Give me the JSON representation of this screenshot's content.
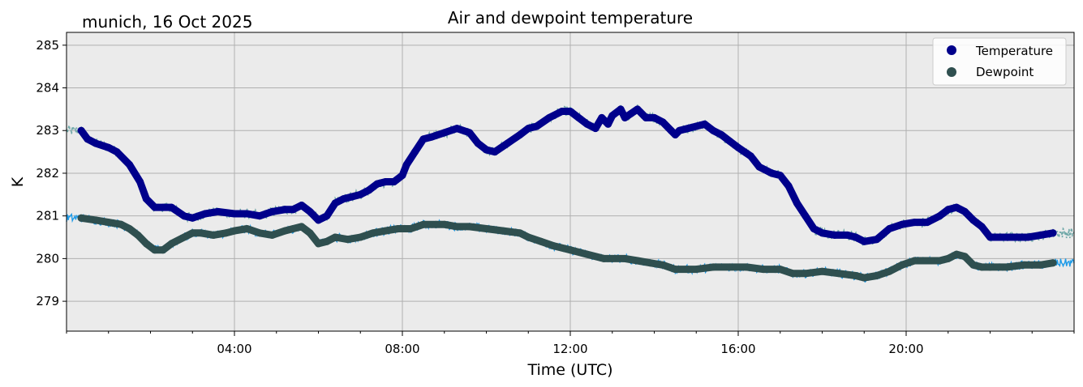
{
  "chart_data": {
    "type": "line",
    "title": "Air and dewpoint temperature",
    "subtitle": "munich, 16 Oct 2025",
    "xlabel": "Time (UTC)",
    "ylabel": "K",
    "xlim_hours": [
      0,
      24
    ],
    "ylim": [
      278.3,
      285.3
    ],
    "xticks": [
      {
        "h": 4,
        "label": "04:00"
      },
      {
        "h": 8,
        "label": "08:00"
      },
      {
        "h": 12,
        "label": "12:00"
      },
      {
        "h": 16,
        "label": "16:00"
      },
      {
        "h": 20,
        "label": "20:00"
      }
    ],
    "yticks": [
      {
        "v": 279,
        "label": "279"
      },
      {
        "v": 280,
        "label": "280"
      },
      {
        "v": 281,
        "label": "281"
      },
      {
        "v": 282,
        "label": "282"
      },
      {
        "v": 283,
        "label": "283"
      },
      {
        "v": 284,
        "label": "284"
      },
      {
        "v": 285,
        "label": "285"
      }
    ],
    "grid": true,
    "legend_position": "top-right",
    "series": [
      {
        "name": "Temperature",
        "color": "#00008b",
        "raw_color": "#6fa8a8",
        "x": [
          0.35,
          0.5,
          0.7,
          1.0,
          1.2,
          1.5,
          1.75,
          1.9,
          2.1,
          2.3,
          2.5,
          2.8,
          3.0,
          3.3,
          3.6,
          4.0,
          4.3,
          4.6,
          4.9,
          5.2,
          5.4,
          5.6,
          5.8,
          6.0,
          6.2,
          6.4,
          6.6,
          6.8,
          7.0,
          7.2,
          7.4,
          7.6,
          7.8,
          8.0,
          8.1,
          8.3,
          8.5,
          8.7,
          9.0,
          9.3,
          9.6,
          9.8,
          10.0,
          10.2,
          10.5,
          10.8,
          11.0,
          11.2,
          11.5,
          11.8,
          12.0,
          12.2,
          12.4,
          12.6,
          12.75,
          12.9,
          13.0,
          13.2,
          13.3,
          13.45,
          13.6,
          13.8,
          14.0,
          14.2,
          14.4,
          14.5,
          14.6,
          14.8,
          15.0,
          15.2,
          15.4,
          15.6,
          15.8,
          16.0,
          16.3,
          16.5,
          16.8,
          17.0,
          17.2,
          17.4,
          17.6,
          17.8,
          18.0,
          18.3,
          18.6,
          18.8,
          19.0,
          19.3,
          19.6,
          19.9,
          20.2,
          20.5,
          20.8,
          21.0,
          21.2,
          21.4,
          21.6,
          21.8,
          22.0,
          22.3,
          22.6,
          22.9,
          23.2,
          23.5
        ],
        "values": [
          283.0,
          282.8,
          282.7,
          282.6,
          282.5,
          282.2,
          281.8,
          281.4,
          281.2,
          281.2,
          281.2,
          281.0,
          280.95,
          281.05,
          281.1,
          281.05,
          281.05,
          281.0,
          281.1,
          281.15,
          281.15,
          281.25,
          281.1,
          280.9,
          281.0,
          281.3,
          281.4,
          281.45,
          281.5,
          281.6,
          281.75,
          281.8,
          281.8,
          281.95,
          282.2,
          282.5,
          282.8,
          282.85,
          282.95,
          283.05,
          282.95,
          282.7,
          282.55,
          282.5,
          282.7,
          282.9,
          283.05,
          283.1,
          283.3,
          283.45,
          283.45,
          283.3,
          283.15,
          283.05,
          283.3,
          283.15,
          283.35,
          283.5,
          283.3,
          283.4,
          283.5,
          283.3,
          283.3,
          283.2,
          283.0,
          282.9,
          283.0,
          283.05,
          283.1,
          283.15,
          283.0,
          282.9,
          282.75,
          282.6,
          282.4,
          282.15,
          282.0,
          281.95,
          281.7,
          281.3,
          281.0,
          280.7,
          280.6,
          280.55,
          280.55,
          280.5,
          280.4,
          280.45,
          280.7,
          280.8,
          280.85,
          280.85,
          281.0,
          281.15,
          281.2,
          281.1,
          280.9,
          280.75,
          280.5,
          280.5,
          280.5,
          280.5,
          280.55,
          280.6
        ]
      },
      {
        "name": "Dewpoint",
        "color": "#2f4f4f",
        "raw_color": "#1e9be8",
        "x": [
          0.35,
          0.7,
          1.0,
          1.3,
          1.5,
          1.7,
          1.9,
          2.1,
          2.3,
          2.5,
          2.8,
          3.0,
          3.2,
          3.5,
          3.8,
          4.0,
          4.3,
          4.6,
          4.9,
          5.2,
          5.4,
          5.6,
          5.8,
          6.0,
          6.2,
          6.4,
          6.7,
          7.0,
          7.3,
          7.6,
          7.9,
          8.2,
          8.5,
          8.8,
          9.0,
          9.3,
          9.6,
          10.0,
          10.4,
          10.8,
          11.0,
          11.3,
          11.6,
          12.0,
          12.4,
          12.8,
          13.0,
          13.3,
          13.6,
          13.9,
          14.2,
          14.5,
          14.8,
          15.0,
          15.4,
          15.8,
          16.2,
          16.6,
          17.0,
          17.3,
          17.6,
          18.0,
          18.4,
          18.8,
          19.0,
          19.3,
          19.6,
          19.9,
          20.2,
          20.6,
          20.8,
          21.0,
          21.2,
          21.4,
          21.6,
          21.8,
          22.0,
          22.4,
          22.8,
          23.2,
          23.5
        ],
        "values": [
          280.95,
          280.9,
          280.85,
          280.8,
          280.7,
          280.55,
          280.35,
          280.2,
          280.2,
          280.35,
          280.5,
          280.6,
          280.6,
          280.55,
          280.6,
          280.65,
          280.7,
          280.6,
          280.55,
          280.65,
          280.7,
          280.75,
          280.6,
          280.35,
          280.4,
          280.5,
          280.45,
          280.5,
          280.6,
          280.65,
          280.7,
          280.7,
          280.8,
          280.8,
          280.8,
          280.75,
          280.75,
          280.7,
          280.65,
          280.6,
          280.5,
          280.4,
          280.3,
          280.2,
          280.1,
          280.0,
          280.0,
          280.0,
          279.95,
          279.9,
          279.85,
          279.75,
          279.75,
          279.75,
          279.8,
          279.8,
          279.8,
          279.75,
          279.75,
          279.65,
          279.65,
          279.7,
          279.65,
          279.6,
          279.55,
          279.6,
          279.7,
          279.85,
          279.95,
          279.95,
          279.95,
          280.0,
          280.1,
          280.05,
          279.85,
          279.8,
          279.8,
          279.8,
          279.85,
          279.85,
          279.9
        ]
      }
    ]
  }
}
